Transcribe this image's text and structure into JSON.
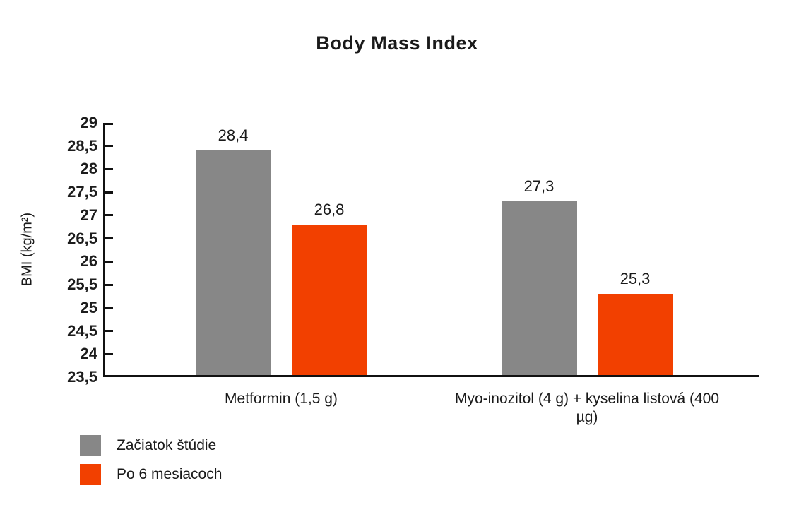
{
  "title": "Body Mass Index",
  "y_axis": {
    "label": "BMI (kg/m²)",
    "tick_labels": [
      "29",
      "28,5",
      "28",
      "27,5",
      "27",
      "26,5",
      "26",
      "25,5",
      "25",
      "24,5",
      "24",
      "23,5"
    ]
  },
  "chart_data": {
    "type": "bar",
    "title": "Body Mass Index",
    "xlabel": "",
    "ylabel": "BMI (kg/m²)",
    "ylim": [
      23.5,
      29
    ],
    "ytick_step": 0.5,
    "grid": false,
    "legend_position": "bottom-left",
    "categories": [
      "Metformin (1,5 g)",
      "Myo-inozitol (4 g) + kyselina listová (400 µg)"
    ],
    "series": [
      {
        "name": "Začiatok štúdie",
        "color": "#878787",
        "values": [
          28.4,
          27.3
        ],
        "value_labels": [
          "28,4",
          "27,3"
        ]
      },
      {
        "name": "Po 6 mesiacoch",
        "color": "#F24000",
        "values": [
          26.8,
          25.3
        ],
        "value_labels": [
          "26,8",
          "25,3"
        ]
      }
    ]
  },
  "legend": {
    "items": [
      {
        "label": "Začiatok štúdie",
        "color": "#878787"
      },
      {
        "label": "Po 6 mesiacoch",
        "color": "#F24000"
      }
    ]
  }
}
